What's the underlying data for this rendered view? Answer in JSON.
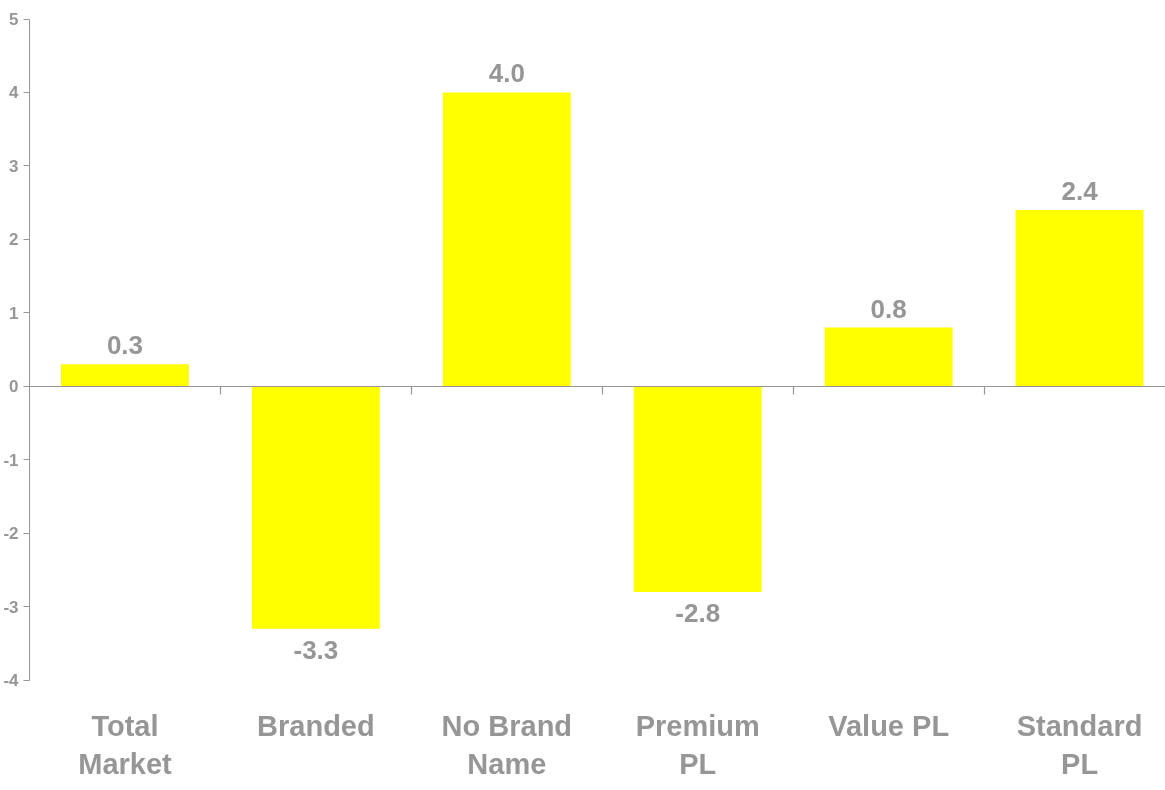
{
  "chart_data": {
    "type": "bar",
    "categories": [
      "Total Market",
      "Branded",
      "No Brand Name",
      "Premium PL",
      "Value PL",
      "Standard PL"
    ],
    "values": [
      0.3,
      -3.3,
      4.0,
      -2.8,
      0.8,
      2.4
    ],
    "color": "#ffff00",
    "ylim": [
      -4,
      5
    ],
    "yticks": [
      -4,
      -3,
      -2,
      -1,
      0,
      1,
      2,
      3,
      4,
      5
    ],
    "value_labels": [
      "0.3",
      "-3.3",
      "4.0",
      "-2.8",
      "0.8",
      "2.4"
    ]
  }
}
